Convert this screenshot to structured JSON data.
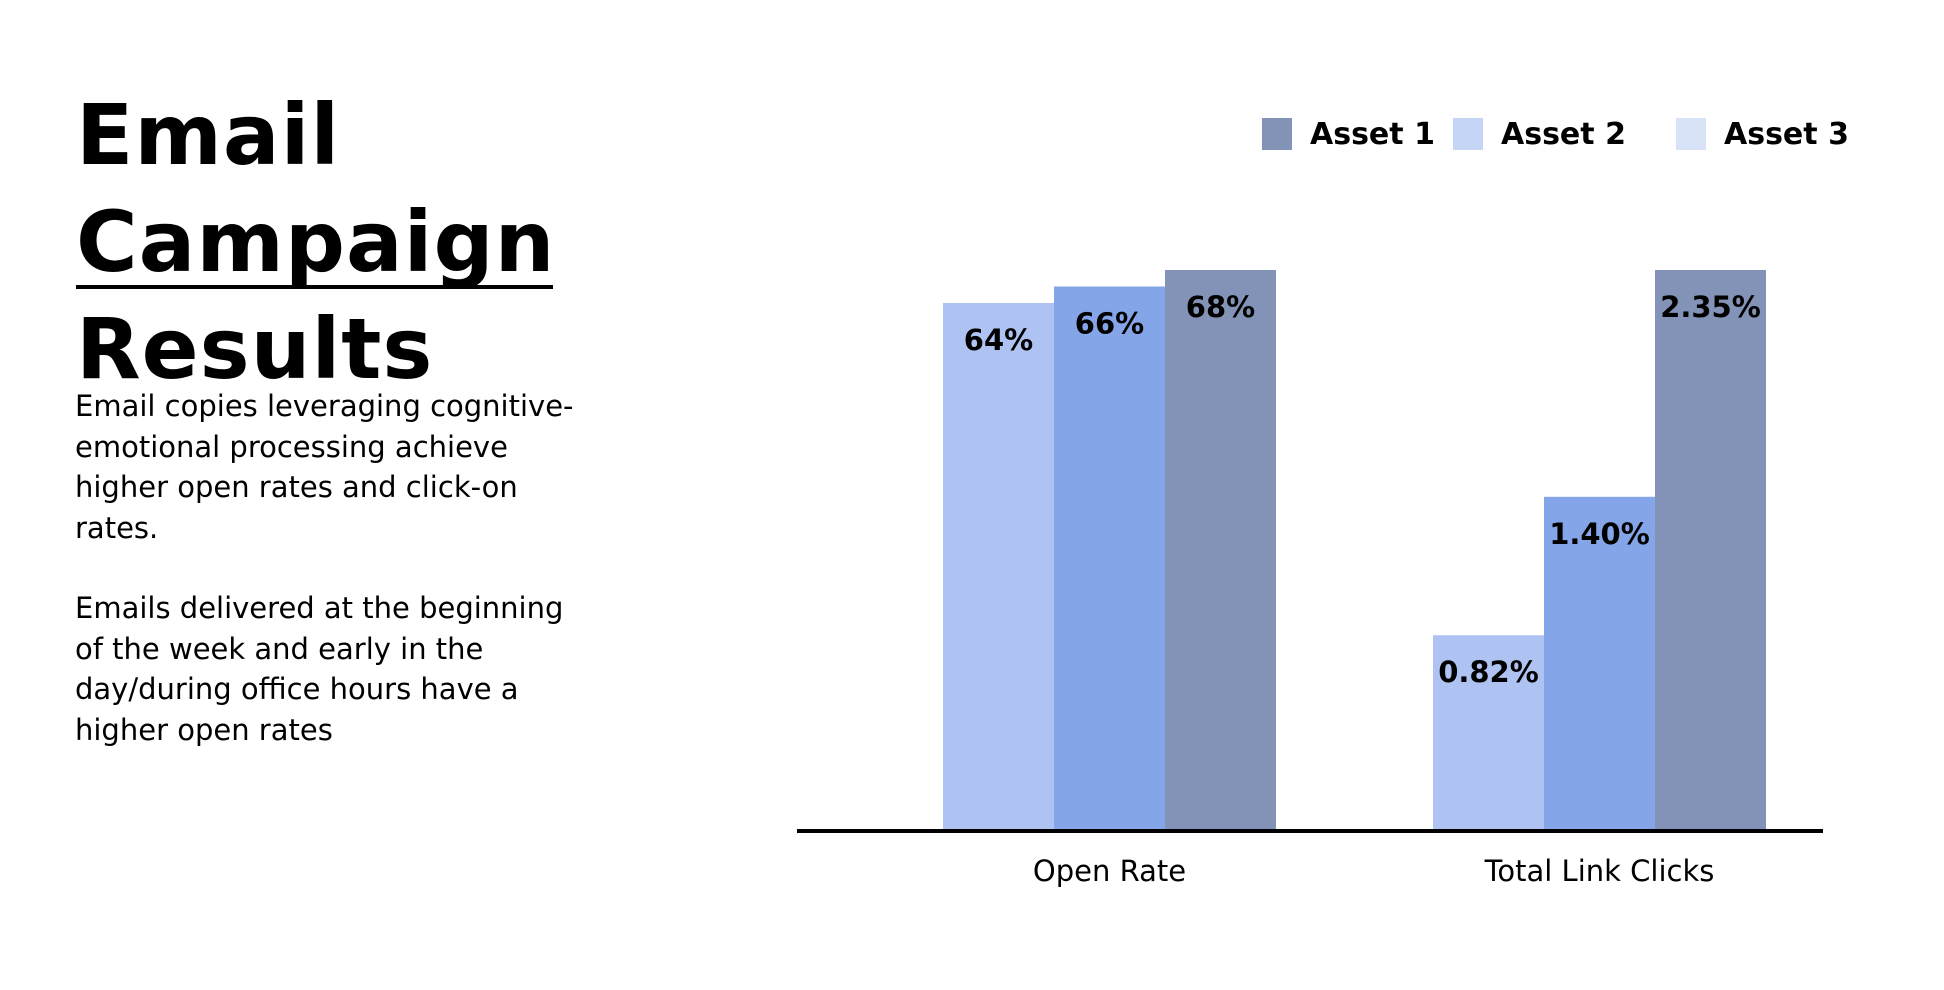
{
  "title": "Email Campaign Results",
  "description": [
    "Email copies leveraging cognitive-emotional processing achieve higher open rates and click-on rates.",
    "Emails delivered at the beginning of the week and early in the day/during office hours have a higher open rates"
  ],
  "chart_data": {
    "type": "bar",
    "title": "",
    "xlabel": "",
    "ylabel": "",
    "legend_position": "top-right",
    "legend": [
      {
        "label": "Asset 1",
        "color": "#8393b7"
      },
      {
        "label": "Asset 2",
        "color": "#c4d5f6"
      },
      {
        "label": "Asset 3",
        "color": "#d9e3f8"
      }
    ],
    "bar_colors": [
      "#aec3f1",
      "#85a5e9",
      "#8393b7"
    ],
    "groups": [
      {
        "category": "Open Rate",
        "values": [
          64,
          66,
          68
        ],
        "labels": [
          "64%",
          "66%",
          "68%"
        ],
        "max_value": 68
      },
      {
        "category": "Total Link Clicks",
        "values": [
          0.82,
          1.4,
          2.35
        ],
        "labels": [
          "0.82%",
          "1.40%",
          "2.35%"
        ],
        "max_value": 2.35
      }
    ]
  }
}
